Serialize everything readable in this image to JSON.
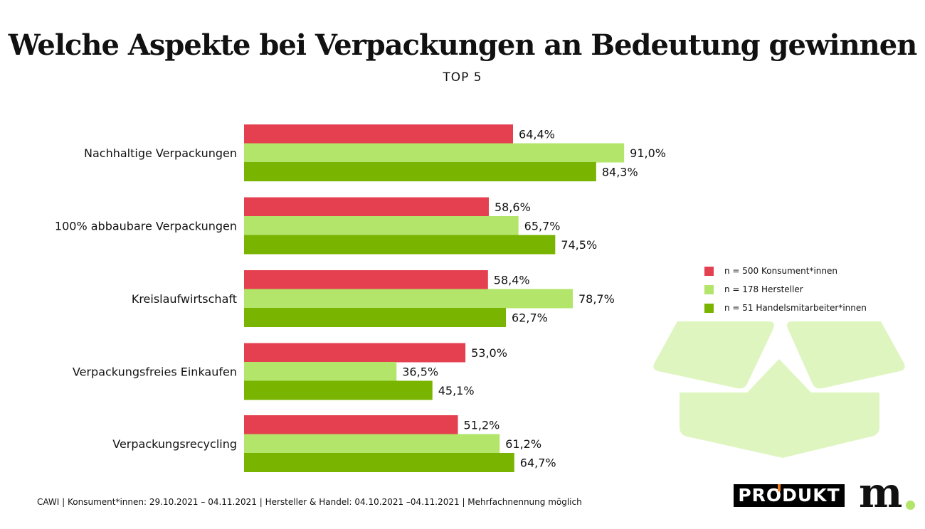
{
  "chart_data": {
    "type": "bar",
    "orientation": "horizontal",
    "title": "Welche Aspekte bei Verpackungen an Bedeutung gewinnen",
    "subtitle": "TOP 5",
    "categories": [
      "Nachhaltige Verpackungen",
      "100% abbaubare Verpackungen",
      "Kreislaufwirtschaft",
      "Verpackungsfreies Einkaufen",
      "Verpackungsrecycling"
    ],
    "series": [
      {
        "name": "n = 500 Konsument*innen",
        "color": "#e5404f",
        "values": [
          64.4,
          58.6,
          58.4,
          53.0,
          51.2
        ],
        "labels": [
          "64,4%",
          "58,6%",
          "58,4%",
          "53,0%",
          "51,2%"
        ]
      },
      {
        "name": "n = 178 Hersteller",
        "color": "#b2e56a",
        "values": [
          91.0,
          65.7,
          78.7,
          36.5,
          61.2
        ],
        "labels": [
          "91,0%",
          "65,7%",
          "78,7%",
          "36,5%",
          "61,2%"
        ]
      },
      {
        "name": "n = 51 Handelsmitarbeiter*innen",
        "color": "#78b400",
        "values": [
          84.3,
          74.5,
          62.7,
          45.1,
          64.7
        ],
        "labels": [
          "84,3%",
          "74,5%",
          "62,7%",
          "45,1%",
          "64,7%"
        ]
      }
    ],
    "xlim": [
      0,
      100
    ],
    "grid": false,
    "legend": "right"
  },
  "footer": "CAWI | Konsument*innen: 29.10.2021 – 04.11.2021 | Hersteller & Handel: 04.10.2021 –04.11.2021 | Mehrfachnennung möglich",
  "logos": {
    "produkt": "PRODUKT",
    "m": "m"
  }
}
